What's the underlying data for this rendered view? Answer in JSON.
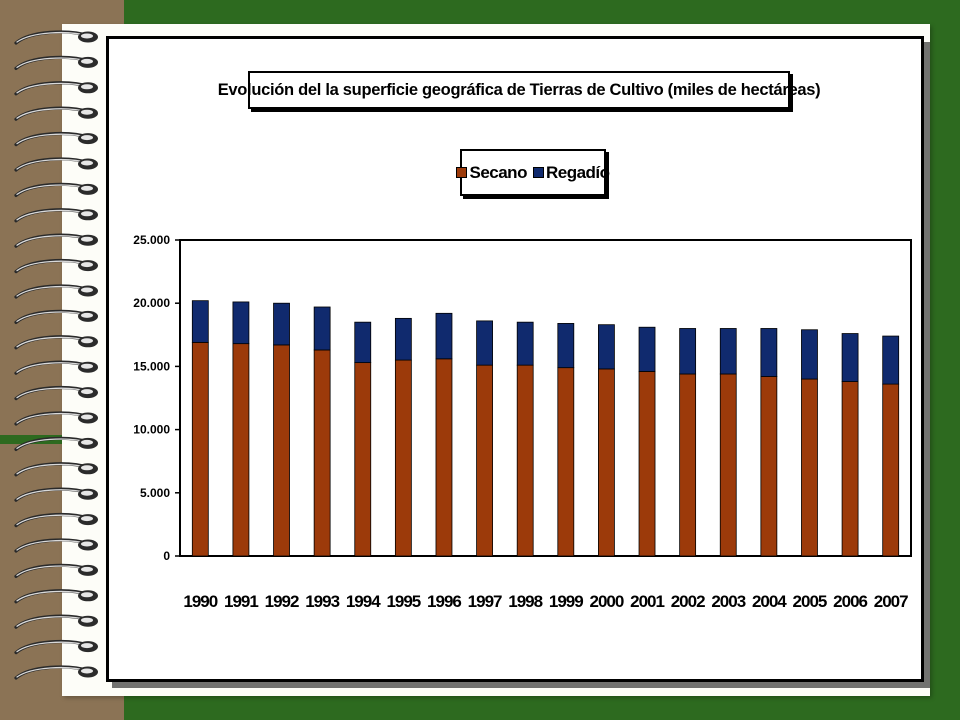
{
  "colors": {
    "background_green": "#2d6a1f",
    "binder_tan": "#8b7355",
    "secano": "#9c3a0a",
    "regadio": "#102a6e"
  },
  "decor": {
    "ring_icon": "binder-ring-icon"
  },
  "chart_data": {
    "type": "bar",
    "stacked": true,
    "title": "Evolución del la superficie geográfica de Tierras de Cultivo (miles de hectáreas)",
    "xlabel": "",
    "ylabel": "",
    "categories": [
      "1990",
      "1991",
      "1992",
      "1993",
      "1994",
      "1995",
      "1996",
      "1997",
      "1998",
      "1999",
      "2000",
      "2001",
      "2002",
      "2003",
      "2004",
      "2005",
      "2006",
      "2007"
    ],
    "series": [
      {
        "name": "Secano",
        "color": "#9c3a0a",
        "values": [
          16900,
          16800,
          16700,
          16300,
          15300,
          15500,
          15600,
          15100,
          15100,
          14900,
          14800,
          14600,
          14400,
          14400,
          14200,
          14000,
          13800,
          13600
        ]
      },
      {
        "name": "Regadío",
        "color": "#102a6e",
        "values": [
          3300,
          3300,
          3300,
          3400,
          3200,
          3300,
          3600,
          3500,
          3400,
          3500,
          3500,
          3500,
          3600,
          3600,
          3800,
          3900,
          3800,
          3800
        ]
      }
    ],
    "ylim": [
      0,
      25000
    ],
    "yticks": [
      {
        "value": 0,
        "label": "0"
      },
      {
        "value": 5000,
        "label": "5.000"
      },
      {
        "value": 10000,
        "label": "10.000"
      },
      {
        "value": 15000,
        "label": "15.000"
      },
      {
        "value": 20000,
        "label": "20.000"
      },
      {
        "value": 25000,
        "label": "25.000"
      }
    ],
    "grid": false,
    "legend_position": "top-center"
  }
}
